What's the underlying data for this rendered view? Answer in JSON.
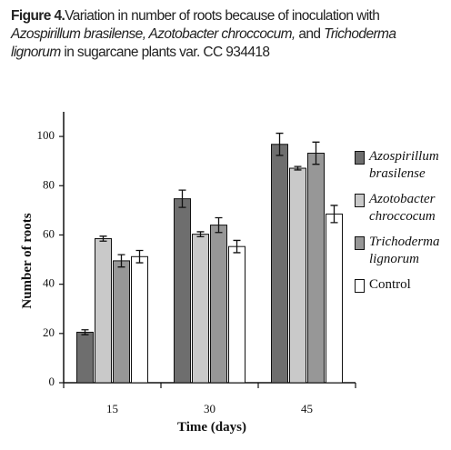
{
  "chart_data": {
    "type": "bar",
    "caption_label": "Figure 4.",
    "caption": [
      "Variation in number of roots because of inoculation with ",
      "Azospirillum brasilense, Azotobacter chroccocum,",
      " and ",
      "Trichoderma lignorum",
      " in sugarcane plants var. CC 934418"
    ],
    "x_label": "Time (days)",
    "y_label": "Number of roots",
    "categories": [
      "15",
      "30",
      "45"
    ],
    "series": [
      {
        "name": "Azospirillum brasilense",
        "color": "#6e6e6e",
        "values": [
          20.5,
          74.7,
          96.8
        ],
        "errors": [
          1,
          3.5,
          4.5
        ]
      },
      {
        "name": "Azotobacter chroccocum",
        "color": "#c9c9c9",
        "values": [
          58.5,
          60.3,
          87.1
        ],
        "errors": [
          1,
          1,
          0.7
        ]
      },
      {
        "name": "Trichoderma lignorum",
        "color": "#979797",
        "values": [
          49.5,
          64,
          93.2
        ],
        "errors": [
          2.5,
          3,
          4.5
        ]
      },
      {
        "name": "Control",
        "color": "#ffffff",
        "values": [
          51.2,
          55.3,
          68.5
        ],
        "errors": [
          2.5,
          2.5,
          3.5
        ]
      }
    ],
    "ylim": [
      0,
      110
    ],
    "yticks": [
      0,
      20,
      40,
      60,
      80,
      100
    ]
  }
}
